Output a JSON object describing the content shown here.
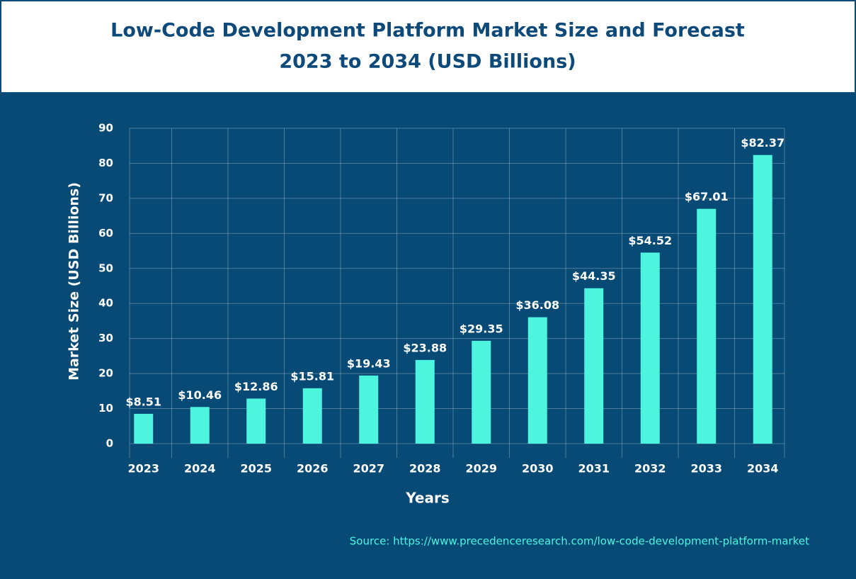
{
  "chart_data": {
    "type": "bar",
    "title": "Low-Code Development Platform Market Size and Forecast",
    "subtitle": "2023 to 2034 (USD Billions)",
    "categories": [
      "2023",
      "2024",
      "2025",
      "2026",
      "2027",
      "2028",
      "2029",
      "2030",
      "2031",
      "2032",
      "2033",
      "2034"
    ],
    "values": [
      8.51,
      10.46,
      12.86,
      15.81,
      19.43,
      23.88,
      29.35,
      36.08,
      44.35,
      54.52,
      67.01,
      82.37
    ],
    "value_labels": [
      "$8.51",
      "$10.46",
      "$12.86",
      "$15.81",
      "$19.43",
      "$23.88",
      "$29.35",
      "$36.08",
      "$44.35",
      "$54.52",
      "$67.01",
      "$82.37"
    ],
    "color": "#4df5df",
    "ylim": [
      0,
      90
    ],
    "yticks": [
      0,
      10,
      20,
      30,
      40,
      50,
      60,
      70,
      80,
      90
    ],
    "grid": true,
    "y_label": "Market Size  (USD Billions)",
    "x_label": "Years",
    "source": "Source: https://www.precedenceresearch.com/low-code-development-platform-market"
  }
}
